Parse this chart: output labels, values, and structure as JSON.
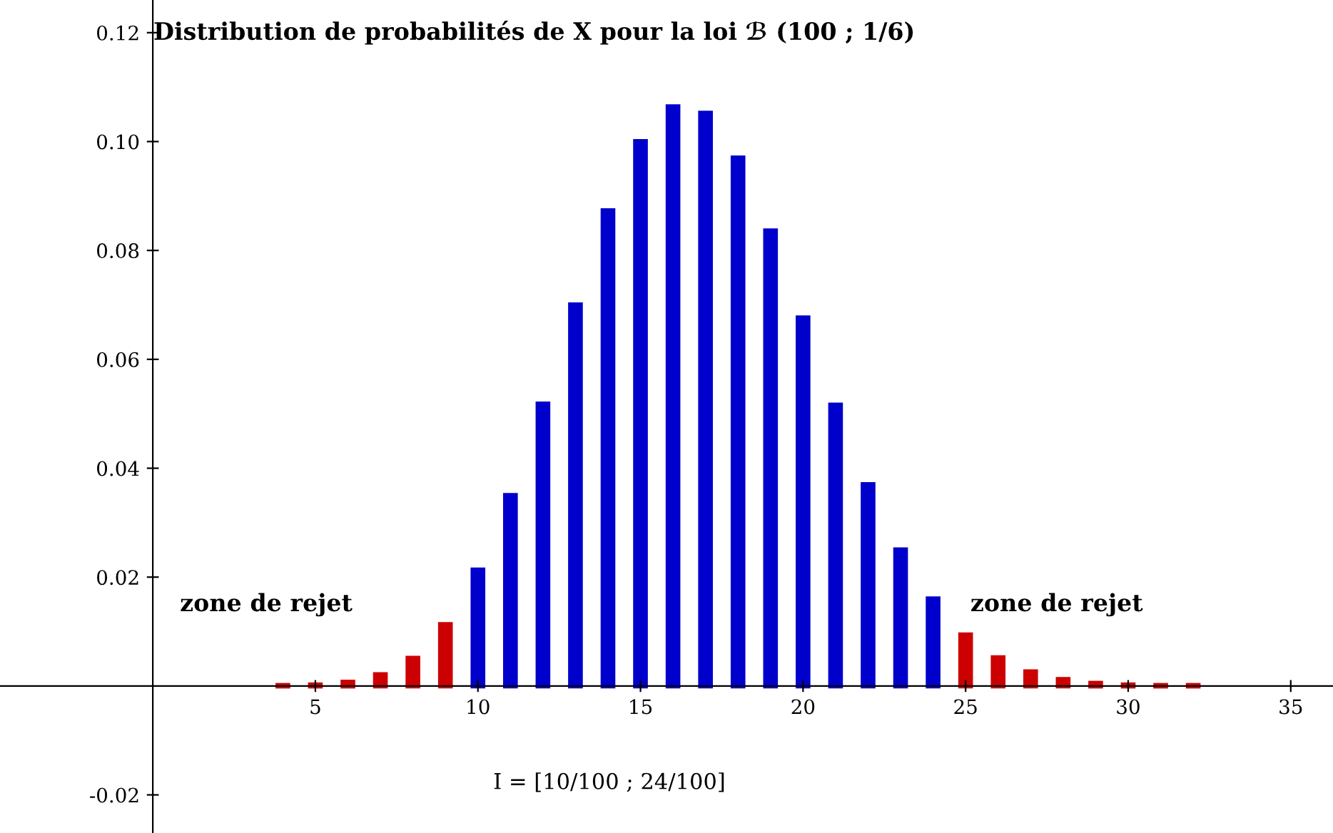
{
  "chart_data": {
    "type": "bar",
    "title": "Distribution de probabilités de X pour la loi ℬ (100 ; 1/6)",
    "series": [
      {
        "x": [
          4,
          5,
          6,
          7,
          8,
          9,
          10,
          11,
          12,
          13,
          14,
          15,
          16,
          17,
          18,
          19,
          20,
          21,
          22,
          23,
          24,
          25,
          26,
          27,
          28,
          29,
          30,
          31,
          32
        ],
        "values": [
          0.0001,
          0.0002,
          0.0007,
          0.0021,
          0.0051,
          0.0113,
          0.0213,
          0.035,
          0.0518,
          0.07,
          0.0873,
          0.1,
          0.1064,
          0.1052,
          0.097,
          0.0836,
          0.0676,
          0.0516,
          0.037,
          0.025,
          0.016,
          0.0094,
          0.0052,
          0.0026,
          0.0012,
          0.0005,
          0.0002,
          0.0001,
          0.0001
        ],
        "colors": [
          "#cc0000",
          "#cc0000",
          "#cc0000",
          "#cc0000",
          "#cc0000",
          "#cc0000",
          "#0000cc",
          "#0000cc",
          "#0000cc",
          "#0000cc",
          "#0000cc",
          "#0000cc",
          "#0000cc",
          "#0000cc",
          "#0000cc",
          "#0000cc",
          "#0000cc",
          "#0000cc",
          "#0000cc",
          "#0000cc",
          "#0000cc",
          "#cc0000",
          "#cc0000",
          "#cc0000",
          "#cc0000",
          "#cc0000",
          "#cc0000",
          "#cc0000",
          "#cc0000"
        ]
      }
    ],
    "xlim": [
      -4.7,
      36.3
    ],
    "ylim": [
      -0.027,
      0.126
    ],
    "xticks": [
      5,
      10,
      15,
      20,
      25,
      30,
      35
    ],
    "yticks": [
      -0.02,
      0.02,
      0.04,
      0.06,
      0.08,
      {
        "value": 0.1,
        "label": "0.10"
      },
      0.12
    ],
    "annotations": [
      "zone de rejet",
      "zone de rejet",
      "I = [10/100 ; 24/100]"
    ],
    "grid": false,
    "legend": false
  }
}
